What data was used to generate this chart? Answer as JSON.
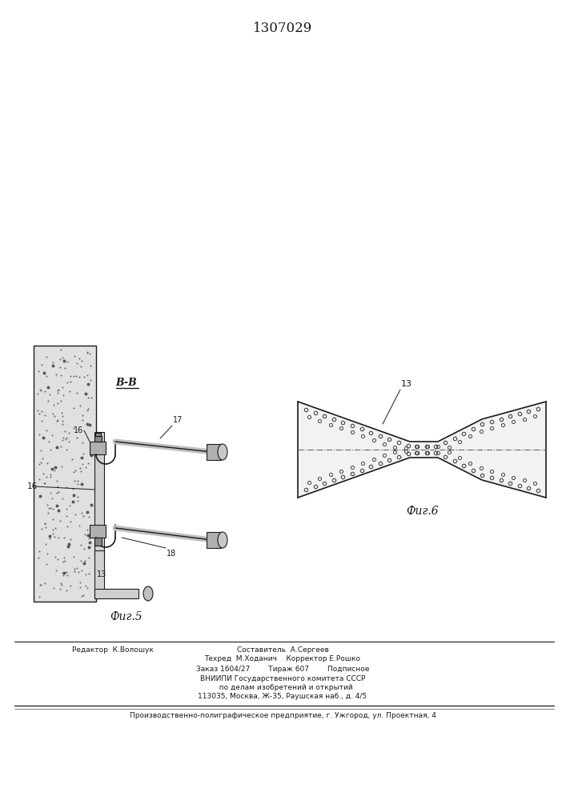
{
  "title": "1307029",
  "title_fontsize": 12,
  "bg_color": "#ffffff",
  "line_color": "#1a1a1a",
  "fig5_label": "Фиг.5",
  "fig6_label": "Фиг.6",
  "label_16_left": "16",
  "label_16_top": "16",
  "label_17": "17",
  "label_18": "18",
  "label_13_fig5": "13",
  "label_13_fig6": "13",
  "footer_line1_left": "Редактор  К.Волошук",
  "footer_line1_center": "Составитель  А.Сергеев",
  "footer_line1_center2": "Техред  М.Ходанич",
  "footer_line1_right": "Корректор Е.Рошко",
  "footer_line2": "Заказ 1604/27        Тираж 607        Подписное",
  "footer_line3": "ВНИИПИ Государственного комитета СССР",
  "footer_line4": "   по делам изобретений и открытий",
  "footer_line5": "113035, Москва, Ж-35, Раушская наб., д. 4/5",
  "footer_line6": "Производственно-полиграфическое предприятие, г. Ужгород, ул. Проектная, 4"
}
